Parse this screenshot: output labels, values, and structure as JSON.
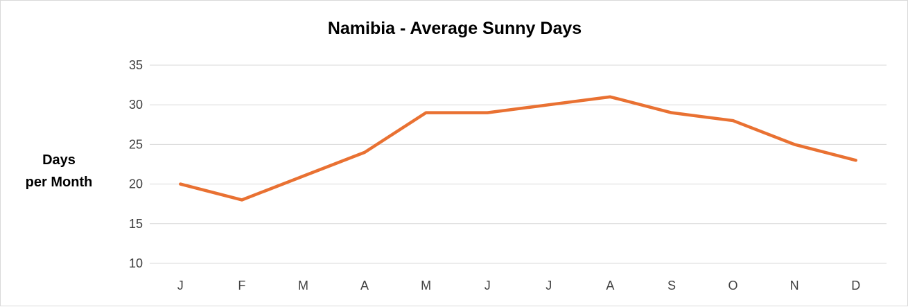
{
  "chart_data": {
    "type": "line",
    "title": "Namibia - Average Sunny Days",
    "ylabel_lines": [
      "Days",
      "per Month"
    ],
    "xlabel": "",
    "categories": [
      "J",
      "F",
      "M",
      "A",
      "M",
      "J",
      "J",
      "A",
      "S",
      "O",
      "N",
      "D"
    ],
    "series": [
      {
        "values": [
          20,
          18,
          21,
          24,
          29,
          29,
          30,
          31,
          29,
          28,
          25,
          23
        ],
        "color": "#e97132"
      }
    ],
    "ylim": [
      10,
      35
    ],
    "yticks": [
      10,
      15,
      20,
      25,
      30,
      35
    ],
    "grid": true,
    "legend": "none"
  }
}
